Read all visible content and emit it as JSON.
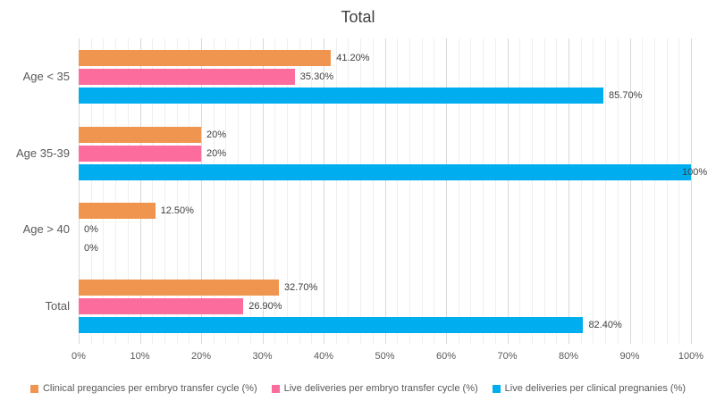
{
  "chart_data": {
    "type": "bar",
    "orientation": "horizontal",
    "title": "Total",
    "categories": [
      "Age < 35",
      "Age 35-39",
      "Age > 40",
      "Total"
    ],
    "series": [
      {
        "name": "Clinical pregancies per embryo transfer cycle (%)",
        "color": "#F0954F",
        "values": [
          41.2,
          20,
          12.5,
          32.7
        ],
        "labels": [
          "41.20%",
          "20%",
          "12.50%",
          "32.70%"
        ]
      },
      {
        "name": "Live deliveries per embryo transfer cycle (%)",
        "color": "#FC6C9C",
        "values": [
          35.3,
          20,
          0,
          26.9
        ],
        "labels": [
          "35.30%",
          "20%",
          "0%",
          "26.90%"
        ]
      },
      {
        "name": "Live deliveries per clinical pregnanies (%)",
        "color": "#00AEEF",
        "values": [
          85.7,
          100,
          0,
          82.4
        ],
        "labels": [
          "85.70%",
          "100%",
          "0%",
          "82.40%"
        ]
      }
    ],
    "xlabel": "",
    "ylabel": "",
    "xlim": [
      0,
      100
    ],
    "x_ticks": [
      "0%",
      "10%",
      "20%",
      "30%",
      "40%",
      "50%",
      "60%",
      "70%",
      "80%",
      "90%",
      "100%"
    ],
    "minor_grid_step": 2,
    "major_grid_step": 10,
    "grid": true,
    "legend_position": "bottom"
  },
  "colors": {
    "grid_minor": "#EFEFEF",
    "grid_major": "#D9D9D9",
    "title_text": "#404040",
    "axis_text": "#595959",
    "data_label_text": "#404040"
  }
}
